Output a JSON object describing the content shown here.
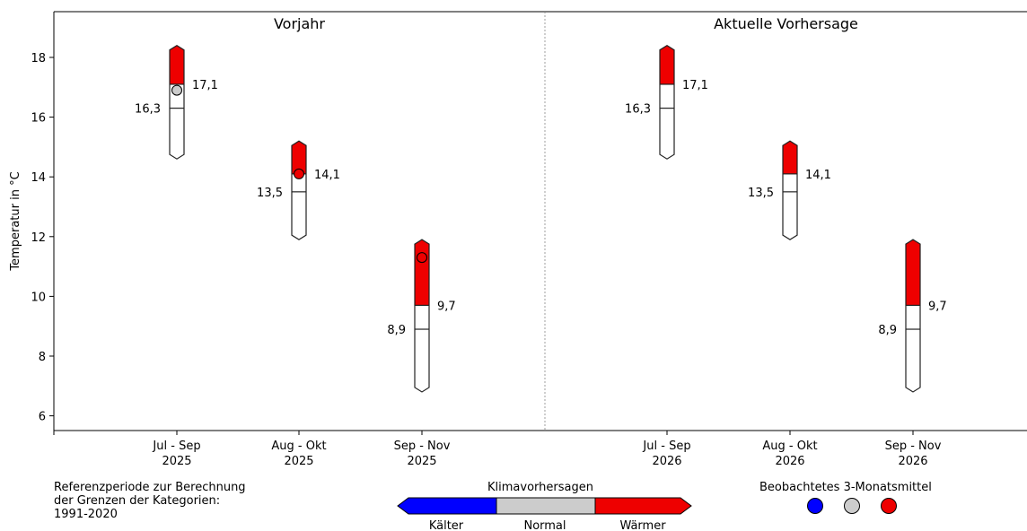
{
  "chart_data": {
    "type": "bar",
    "ylabel": "Temperatur in °C",
    "ylim": [
      5.5,
      19.5
    ],
    "yticks": [
      6,
      8,
      10,
      12,
      14,
      16,
      18
    ],
    "panels": [
      {
        "title": "Vorjahr",
        "show_observed": true
      },
      {
        "title": "Aktuelle Vorhersage",
        "show_observed": false
      }
    ],
    "columns": [
      {
        "label_line1": "Jul - Sep",
        "label_line2": "2025",
        "panel": 0,
        "min": 14.6,
        "lower": 16.3,
        "upper": 17.1,
        "max": 18.4,
        "lower_label": "16,3",
        "upper_label": "17,1",
        "forecast": "Wärmer",
        "observed": 16.9,
        "observed_category": "Normal"
      },
      {
        "label_line1": "Aug - Okt",
        "label_line2": "2025",
        "panel": 0,
        "min": 11.9,
        "lower": 13.5,
        "upper": 14.1,
        "max": 15.2,
        "lower_label": "13,5",
        "upper_label": "14,1",
        "forecast": "Wärmer",
        "observed": 14.1,
        "observed_category": "Wärmer"
      },
      {
        "label_line1": "Sep - Nov",
        "label_line2": "2025",
        "panel": 0,
        "min": 6.8,
        "lower": 8.9,
        "upper": 9.7,
        "max": 11.9,
        "lower_label": "8,9",
        "upper_label": "9,7",
        "forecast": "Wärmer",
        "observed": 11.3,
        "observed_category": "Wärmer"
      },
      {
        "label_line1": "Jul - Sep",
        "label_line2": "2026",
        "panel": 1,
        "min": 14.6,
        "lower": 16.3,
        "upper": 17.1,
        "max": 18.4,
        "lower_label": "16,3",
        "upper_label": "17,1",
        "forecast": "Wärmer"
      },
      {
        "label_line1": "Aug - Okt",
        "label_line2": "2026",
        "panel": 1,
        "min": 11.9,
        "lower": 13.5,
        "upper": 14.1,
        "max": 15.2,
        "lower_label": "13,5",
        "upper_label": "14,1",
        "forecast": "Wärmer"
      },
      {
        "label_line1": "Sep - Nov",
        "label_line2": "2026",
        "panel": 1,
        "min": 6.8,
        "lower": 8.9,
        "upper": 9.7,
        "max": 11.9,
        "lower_label": "8,9",
        "upper_label": "9,7",
        "forecast": "Wärmer"
      }
    ],
    "grid": false,
    "legend_placement": "bottom"
  },
  "colors": {
    "kaelter": "#0000ff",
    "normal": "#cccccc",
    "waermer": "#ee0000",
    "outline": "#222222"
  },
  "footer": {
    "reference_text": [
      "Referenzperiode zur Berechnung",
      "der Grenzen der Kategorien:",
      "1991-2020"
    ],
    "forecast_legend_title": "Klimavorhersagen",
    "forecast_categories": [
      "Kälter",
      "Normal",
      "Wärmer"
    ],
    "observed_legend_title": "Beobachtetes 3-Monatsmittel"
  }
}
